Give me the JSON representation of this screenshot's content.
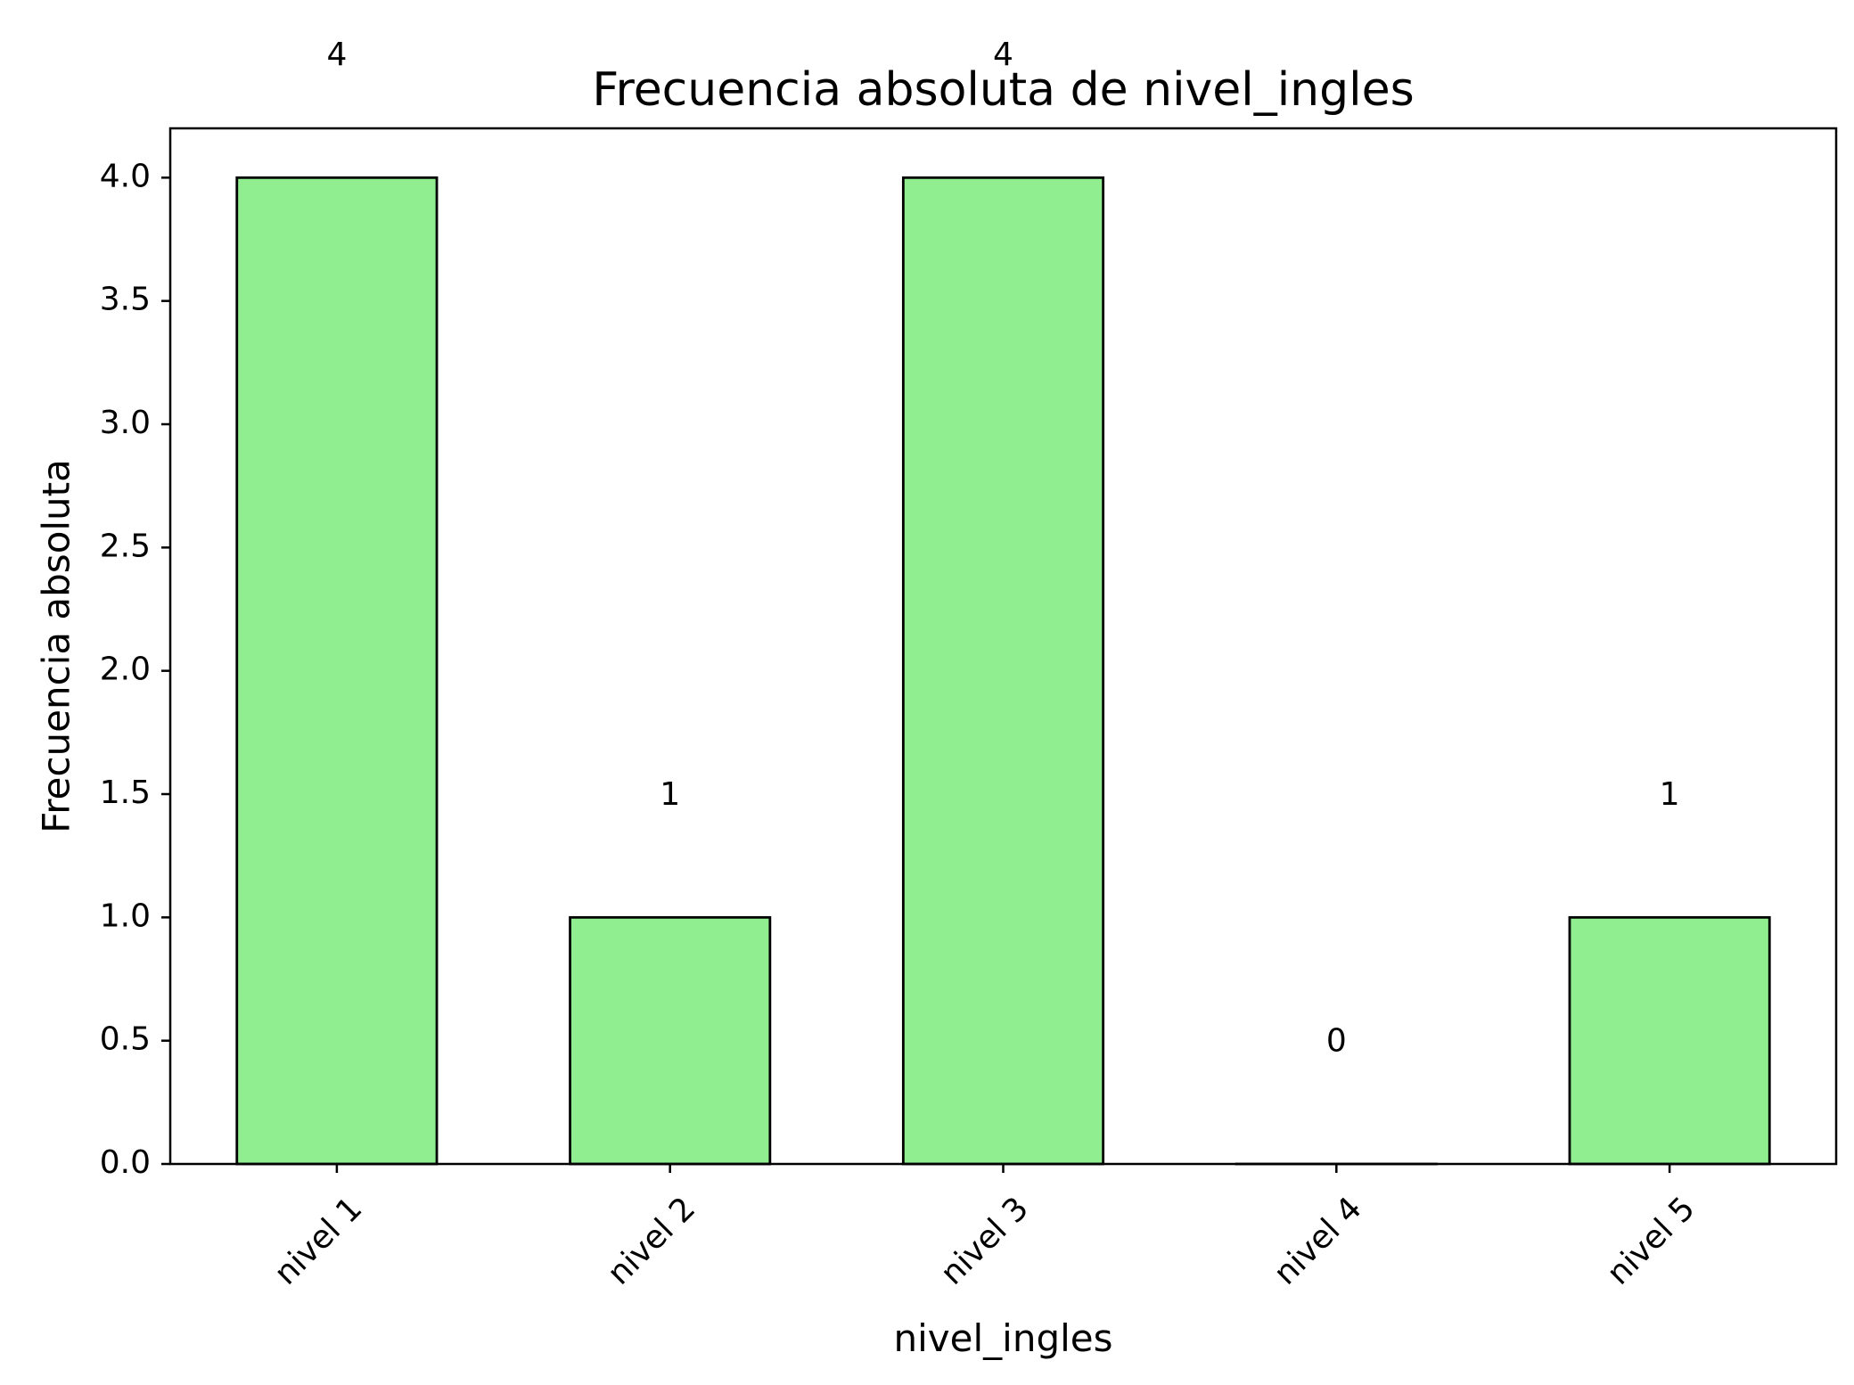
{
  "chart_data": {
    "type": "bar",
    "title": "Frecuencia absoluta de nivel_ingles",
    "xlabel": "nivel_ingles",
    "ylabel": "Frecuencia absoluta",
    "categories": [
      "nivel 1",
      "nivel 2",
      "nivel 3",
      "nivel 4",
      "nivel 5"
    ],
    "values": [
      4,
      1,
      4,
      0,
      1
    ],
    "data_labels": [
      "4",
      "1",
      "4",
      "0",
      "1"
    ],
    "ylim": [
      0,
      4.2
    ],
    "yticks": [
      0.0,
      0.5,
      1.0,
      1.5,
      2.0,
      2.5,
      3.0,
      3.5,
      4.0
    ],
    "ytick_labels": [
      "0.0",
      "0.5",
      "1.0",
      "1.5",
      "2.0",
      "2.5",
      "3.0",
      "3.5",
      "4.0"
    ],
    "bar_color": "#90ee90",
    "edge_color": "#000000",
    "grid": false,
    "legend": "none"
  }
}
